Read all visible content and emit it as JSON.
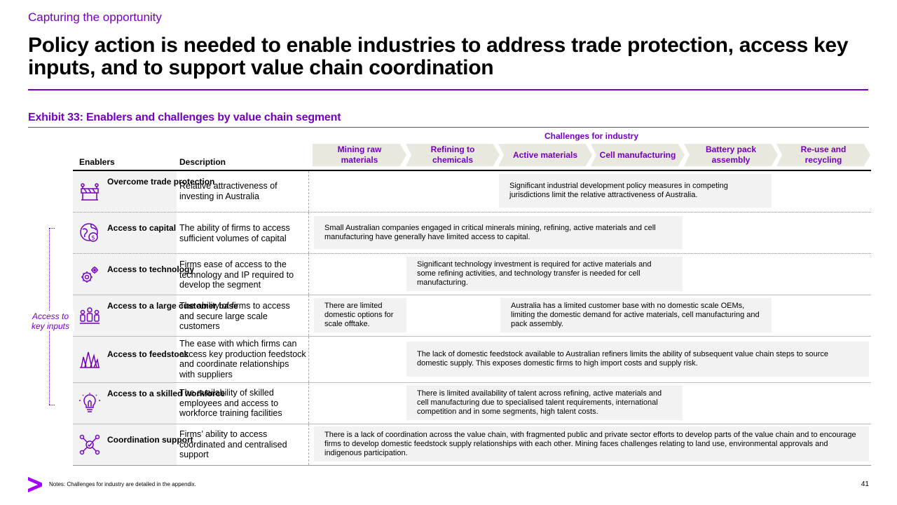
{
  "kicker": "Capturing the opportunity",
  "headline": "Policy action is needed to enable industries to address trade protection, access key inputs, and to support value chain coordination",
  "exhibit": {
    "title": "Exhibit 33: Enablers and challenges by value chain segment",
    "challenges_heading": "Challenges for industry",
    "col_enablers": "Enablers",
    "col_description": "Description",
    "segments": [
      "Mining raw materials",
      "Refining to chemicals",
      "Active materials",
      "Cell manufacturing",
      "Battery pack assembly",
      "Re-use and recycling"
    ]
  },
  "bracket_label": "Access to key inputs",
  "rows": [
    {
      "icon": "trade-barrier-icon",
      "enabler": "Overcome trade protection",
      "description": "Relative attractiveness of investing in Australia",
      "challenges": [
        "Significant industrial development policy measures in competing jurisdictions limit the relative attractiveness of Australia."
      ]
    },
    {
      "icon": "globe-dollar-icon",
      "enabler": "Access to capital",
      "description": "The ability of firms to access sufficient volumes of capital",
      "challenges": [
        "Small Australian companies engaged in critical minerals mining, refining, active materials and cell manufacturing have generally have limited access to capital."
      ]
    },
    {
      "icon": "gears-icon",
      "enabler": "Access to technology",
      "description": "Firms ease of access to the technology and IP required to develop the segment",
      "challenges": [
        "Significant technology investment is required for active materials and some refining activities, and technology transfer is needed for cell manufacturing."
      ]
    },
    {
      "icon": "people-icon",
      "enabler": "Access to a large customer base",
      "description": "The ability of firms to access and secure large scale customers",
      "challenges": [
        "There are limited domestic options for scale offtake.",
        "Australia has a limited customer base with no domestic scale OEMs, limiting the domestic demand for active materials, cell manufacturing and pack assembly."
      ]
    },
    {
      "icon": "crystal-icon",
      "enabler": "Access to feedstock",
      "description": "The ease with which firms can access key production feedstock and coordinate relationships with suppliers",
      "challenges": [
        "The lack of domestic feedstock available to Australian refiners limits the ability of subsequent value chain steps to source domestic supply. This exposes domestic firms to high import costs and supply risk."
      ]
    },
    {
      "icon": "lightbulb-icon",
      "enabler": "Access to a skilled workforce",
      "description": "The availability of skilled employees and access to workforce training facilities",
      "challenges": [
        "There is limited availability of talent across refining, active materials and cell manufacturing due to specialised talent requirements, international competition and in some segments, high talent costs."
      ]
    },
    {
      "icon": "network-icon",
      "enabler": "Coordination support",
      "description": "Firms’ ability to access coordinated and centralised support",
      "challenges": [
        "There is a lack of coordination across the value chain, with fragmented public and private sector efforts to develop parts of the value chain and to encourage firms to develop domestic feedstock supply relationships with each other. Mining faces challenges relating to land use, environmental approvals and indigenous participation."
      ]
    }
  ],
  "notes": "Notes: Challenges for industry are detailed in the appendix.",
  "page_number": "41",
  "colors": {
    "accent": "#7500c0",
    "chevron_bg": "#e8e8df",
    "cell_bg": "#f2f2f2"
  }
}
